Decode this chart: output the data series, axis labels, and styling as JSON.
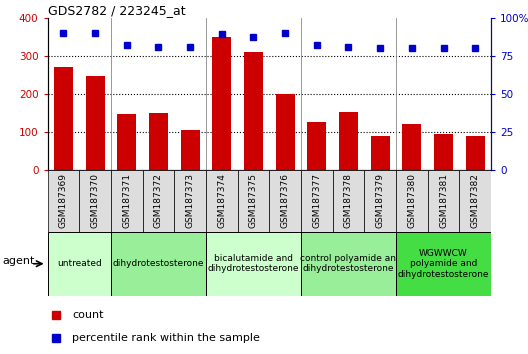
{
  "title": "GDS2782 / 223245_at",
  "categories": [
    "GSM187369",
    "GSM187370",
    "GSM187371",
    "GSM187372",
    "GSM187373",
    "GSM187374",
    "GSM187375",
    "GSM187376",
    "GSM187377",
    "GSM187378",
    "GSM187379",
    "GSM187380",
    "GSM187381",
    "GSM187382"
  ],
  "bar_values": [
    270,
    248,
    147,
    150,
    106,
    348,
    310,
    200,
    127,
    152,
    90,
    120,
    95,
    90
  ],
  "dot_values": [
    90,
    90,
    82,
    81,
    81,
    89,
    87,
    90,
    82,
    81,
    80,
    80,
    80,
    80
  ],
  "bar_color": "#cc0000",
  "dot_color": "#0000cc",
  "ylim_left": [
    0,
    400
  ],
  "ylim_right": [
    0,
    100
  ],
  "yticks_left": [
    0,
    100,
    200,
    300,
    400
  ],
  "ytick_labels_left": [
    "0",
    "100",
    "200",
    "300",
    "400"
  ],
  "yticks_right": [
    0,
    25,
    50,
    75,
    100
  ],
  "ytick_labels_right": [
    "0",
    "25",
    "50",
    "75",
    "100%"
  ],
  "grid_values": [
    100,
    200,
    300
  ],
  "agent_groups": [
    {
      "label": "untreated",
      "start": 0,
      "end": 2,
      "color": "#ccffcc"
    },
    {
      "label": "dihydrotestosterone",
      "start": 2,
      "end": 5,
      "color": "#99ee99"
    },
    {
      "label": "bicalutamide and\ndihydrotestosterone",
      "start": 5,
      "end": 8,
      "color": "#ccffcc"
    },
    {
      "label": "control polyamide an\ndihydrotestosterone",
      "start": 8,
      "end": 11,
      "color": "#99ee99"
    },
    {
      "label": "WGWWCW\npolyamide and\ndihydrotestosterone",
      "start": 11,
      "end": 14,
      "color": "#44dd44"
    }
  ],
  "group_boundaries": [
    2,
    5,
    8,
    11
  ],
  "legend_count_label": "count",
  "legend_percentile_label": "percentile rank within the sample",
  "agent_label": "agent"
}
